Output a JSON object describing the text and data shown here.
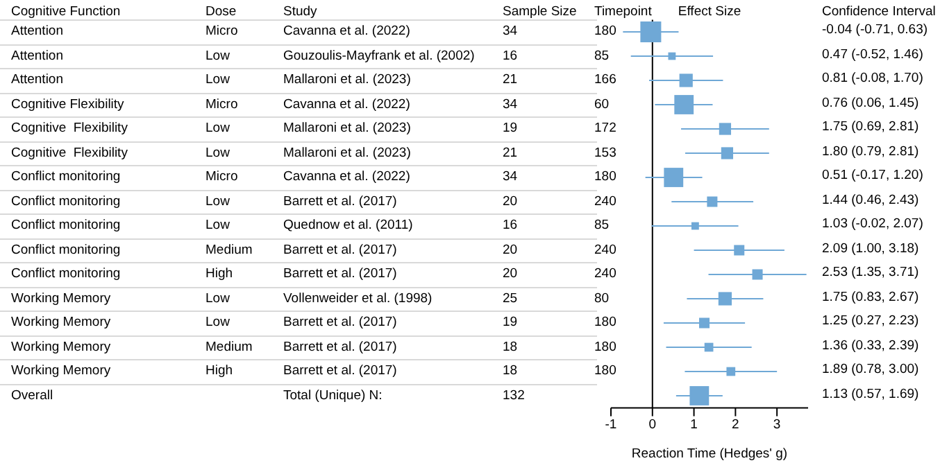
{
  "chart_data": [
    {
      "type": "other",
      "categories": [
        "Cognitive Function",
        "Dose",
        "Study",
        "Sample Size",
        "Timepoint"
      ],
      "cell_labels": [
        [
          "Attention",
          "Micro",
          "Cavanna et al. (2022)",
          "34",
          "180"
        ],
        [
          "Attention",
          "Low",
          "Gouzoulis-Mayfrank et al. (2002)",
          "16",
          "85"
        ],
        [
          "Attention",
          "Low",
          "Mallaroni et al. (2023)",
          "21",
          "166"
        ],
        [
          "Cognitive Flexibility",
          "Micro",
          "Cavanna et al. (2022)",
          "34",
          "60"
        ],
        [
          "Cognitive  Flexibility",
          "Low",
          "Mallaroni et al. (2023)",
          "19",
          "172"
        ],
        [
          "Cognitive  Flexibility",
          "Low",
          "Mallaroni et al. (2023)",
          "21",
          "153"
        ],
        [
          "Conflict monitoring",
          "Micro",
          "Cavanna et al. (2022)",
          "34",
          "180"
        ],
        [
          "Conflict monitoring",
          "Low",
          "Barrett et al. (2017)",
          "20",
          "240"
        ],
        [
          "Conflict monitoring",
          "Low",
          "Quednow et al. (2011)",
          "16",
          "85"
        ],
        [
          "Conflict monitoring",
          "Medium",
          "Barrett et al. (2017)",
          "20",
          "240"
        ],
        [
          "Conflict monitoring",
          "High",
          "Barrett et al. (2017)",
          "20",
          "240"
        ],
        [
          "Working Memory",
          "Low",
          "Vollenweider et al. (1998)",
          "25",
          "80"
        ],
        [
          "Working Memory",
          "Low",
          "Barrett et al. (2017)",
          "19",
          "180"
        ],
        [
          "Working Memory",
          "Medium",
          "Barrett et al. (2017)",
          "18",
          "180"
        ],
        [
          "Working Memory",
          "High",
          "Barrett et al. (2017)",
          "18",
          "180"
        ],
        [
          "Overall",
          null,
          "Total (Unique) N:",
          "132",
          null
        ]
      ]
    },
    {
      "type": "scatter",
      "orientation": "horizontal",
      "title": "Effect Size",
      "xlabel": "Reaction Time (Hedges' g)",
      "annotations": [
        "Confidence Interval"
      ],
      "categories": [
        null,
        null,
        null,
        null,
        null,
        null,
        null,
        null,
        null,
        null,
        null,
        null,
        null,
        null,
        null,
        null
      ],
      "values": [
        -0.04,
        0.47,
        0.81,
        0.76,
        1.75,
        1.8,
        0.51,
        1.44,
        1.03,
        2.09,
        2.53,
        1.75,
        1.25,
        1.36,
        1.89,
        1.13
      ],
      "errors": [
        [
          -0.71,
          0.63
        ],
        [
          -0.52,
          1.46
        ],
        [
          -0.08,
          1.7
        ],
        [
          0.06,
          1.45
        ],
        [
          0.69,
          2.81
        ],
        [
          0.79,
          2.81
        ],
        [
          -0.17,
          1.2
        ],
        [
          0.46,
          2.43
        ],
        [
          -0.02,
          2.07
        ],
        [
          1.0,
          3.18
        ],
        [
          1.35,
          3.71
        ],
        [
          0.83,
          2.67
        ],
        [
          0.27,
          2.23
        ],
        [
          0.33,
          2.39
        ],
        [
          0.78,
          3.0
        ],
        [
          0.57,
          1.69
        ]
      ],
      "sizes": [
        1,
        0.13,
        0.41,
        0.86,
        0.33,
        0.33,
        0.86,
        0.25,
        0.13,
        0.25,
        0.25,
        0.41,
        0.25,
        0.18,
        0.18,
        0.86
      ],
      "value_labels": [
        "-0.04 (-0.71, 0.63)",
        "0.47 (-0.52, 1.46)",
        "0.81 (-0.08, 1.70)",
        "0.76 (0.06, 1.45)",
        "1.75 (0.69, 2.81)",
        "1.80 (0.79, 2.81)",
        "0.51 (-0.17, 1.20)",
        "1.44 (0.46, 2.43)",
        "1.03 (-0.02, 2.07)",
        "2.09 (1.00, 3.18)",
        "2.53 (1.35, 3.71)",
        "1.75 (0.83, 2.67)",
        "1.25 (0.27, 2.23)",
        "1.36 (0.33, 2.39)",
        "1.89 (0.78, 3.00)",
        "1.13 (0.57, 1.69)"
      ],
      "color": "#6fa8d6",
      "marker": "square",
      "xlim": [
        -1,
        3.75
      ],
      "xticks": [
        -1,
        0,
        1,
        2,
        3
      ],
      "ref_lines": [
        {
          "axis": "x",
          "value": 0,
          "color": "#000000"
        }
      ]
    }
  ]
}
